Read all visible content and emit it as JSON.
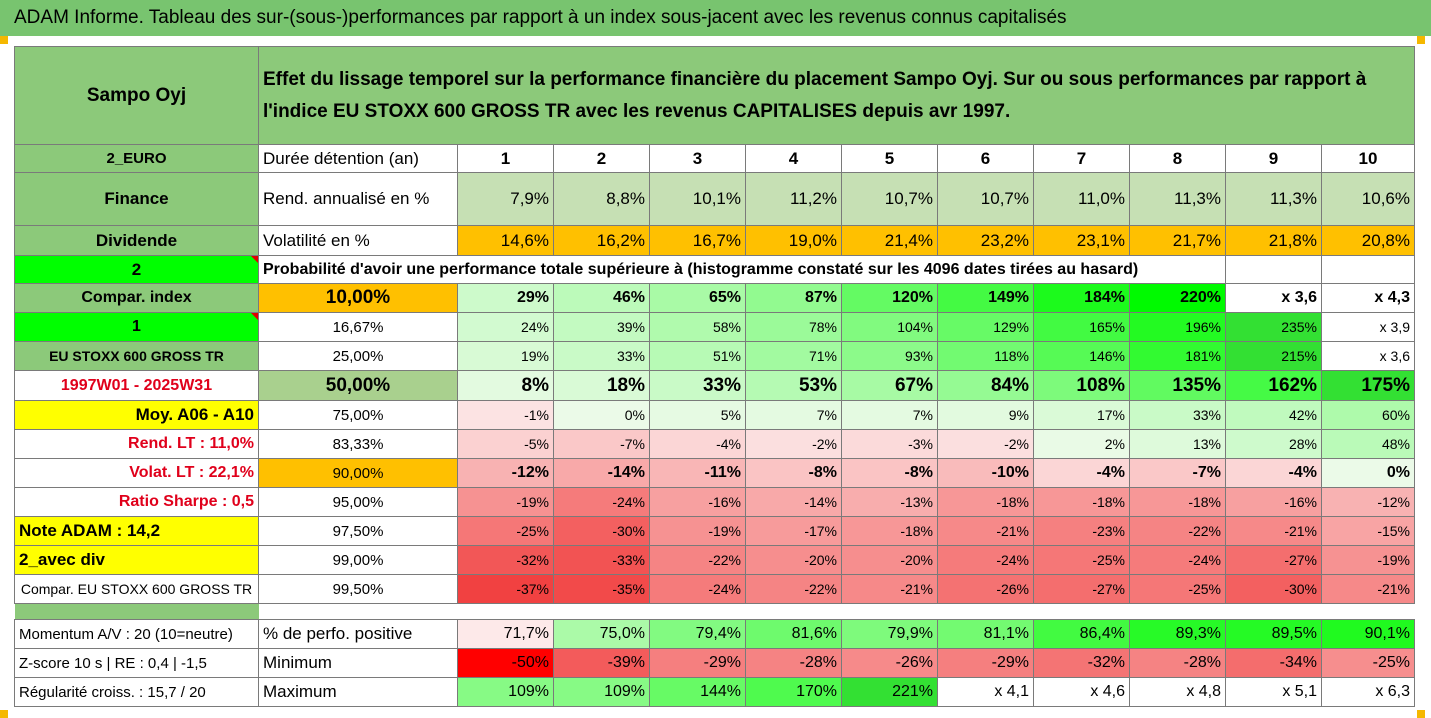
{
  "title": "ADAM Informe. Tableau des sur-(sous-)performances par rapport à un index sous-jacent avec les revenus connus capitalisés",
  "asset_name": "Sampo Oyj",
  "description": "Effet du lissage temporel sur la performance financière du placement Sampo Oyj. Sur ou sous performances par rapport à l'indice EU STOXX 600 GROSS TR avec les revenus CAPITALISES depuis avr 1997.",
  "colors": {
    "header_green": "#78c46f",
    "label_green": "#8cc97a",
    "orange": "#ffc000",
    "yellow": "#ffff00",
    "bright_green": "#00ff00",
    "accent_red": "#e0001b"
  },
  "header_row": {
    "left": "2_EURO",
    "label": "Durée détention (an)",
    "years": [
      "1",
      "2",
      "3",
      "4",
      "5",
      "6",
      "7",
      "8",
      "9",
      "10"
    ]
  },
  "rend_row": {
    "left": "Finance",
    "label": "Rend. annualisé en %",
    "values": [
      "7,9%",
      "8,8%",
      "10,1%",
      "11,2%",
      "10,7%",
      "10,7%",
      "11,0%",
      "11,3%",
      "11,3%",
      "10,6%"
    ]
  },
  "vol_row": {
    "left": "Dividende",
    "label": "Volatilité en %",
    "values": [
      "14,6%",
      "16,2%",
      "16,7%",
      "19,0%",
      "21,4%",
      "23,2%",
      "23,1%",
      "21,7%",
      "21,8%",
      "20,8%"
    ]
  },
  "prob_row": {
    "left": "2",
    "text": "Probabilité d'avoir une performance totale supérieure à (histogramme constaté sur les 4096 dates tirées au hasard)"
  },
  "quantile_rows": [
    {
      "left": "Compar. index",
      "pct": "10,00%",
      "values": [
        "29%",
        "46%",
        "65%",
        "87%",
        "120%",
        "149%",
        "184%",
        "220%",
        "x 3,6",
        "x 4,3"
      ]
    },
    {
      "left": "1",
      "pct": "16,67%",
      "values": [
        "24%",
        "39%",
        "58%",
        "78%",
        "104%",
        "129%",
        "165%",
        "196%",
        "235%",
        "x 3,9"
      ]
    },
    {
      "left": "EU STOXX 600 GROSS TR",
      "pct": "25,00%",
      "values": [
        "19%",
        "33%",
        "51%",
        "71%",
        "93%",
        "118%",
        "146%",
        "181%",
        "215%",
        "x 3,6"
      ]
    },
    {
      "left": "1997W01 - 2025W31",
      "pct": "50,00%",
      "values": [
        "8%",
        "18%",
        "33%",
        "53%",
        "67%",
        "84%",
        "108%",
        "135%",
        "162%",
        "175%"
      ]
    },
    {
      "left": "Moy. A06 - A10",
      "pct": "75,00%",
      "values": [
        "-1%",
        "0%",
        "5%",
        "7%",
        "7%",
        "9%",
        "17%",
        "33%",
        "42%",
        "60%"
      ]
    },
    {
      "left": "Rend. LT :   11,0%",
      "pct": "83,33%",
      "values": [
        "-5%",
        "-7%",
        "-4%",
        "-2%",
        "-3%",
        "-2%",
        "2%",
        "13%",
        "28%",
        "48%"
      ]
    },
    {
      "left": "Volat. LT :   22,1%",
      "pct": "90,00%",
      "values": [
        "-12%",
        "-14%",
        "-11%",
        "-8%",
        "-8%",
        "-10%",
        "-4%",
        "-7%",
        "-4%",
        "0%"
      ]
    },
    {
      "left": "Ratio Sharpe :    0,5",
      "pct": "95,00%",
      "values": [
        "-19%",
        "-24%",
        "-16%",
        "-14%",
        "-13%",
        "-18%",
        "-18%",
        "-18%",
        "-16%",
        "-12%"
      ]
    },
    {
      "left": "Note ADAM : 14,2",
      "pct": "97,50%",
      "values": [
        "-25%",
        "-30%",
        "-19%",
        "-17%",
        "-18%",
        "-21%",
        "-23%",
        "-22%",
        "-21%",
        "-15%"
      ]
    },
    {
      "left": "2_avec div",
      "pct": "99,00%",
      "values": [
        "-32%",
        "-33%",
        "-22%",
        "-20%",
        "-20%",
        "-24%",
        "-25%",
        "-24%",
        "-27%",
        "-19%"
      ]
    },
    {
      "left": "Compar. EU STOXX 600 GROSS TR",
      "pct": "99,50%",
      "values": [
        "-37%",
        "-35%",
        "-24%",
        "-22%",
        "-21%",
        "-26%",
        "-27%",
        "-25%",
        "-30%",
        "-21%"
      ]
    }
  ],
  "bottom_rows": [
    {
      "left": "Momentum A/V : 20 (10=neutre)",
      "label": "% de perfo. positive",
      "values": [
        "71,7%",
        "75,0%",
        "79,4%",
        "81,6%",
        "79,9%",
        "81,1%",
        "86,4%",
        "89,3%",
        "89,5%",
        "90,1%"
      ]
    },
    {
      "left": "Z-score 10 s  |  RE : 0,4  |  -1,5",
      "label": "Minimum",
      "values": [
        "-50%",
        "-39%",
        "-29%",
        "-28%",
        "-26%",
        "-29%",
        "-32%",
        "-28%",
        "-34%",
        "-25%"
      ]
    },
    {
      "left": "Régularité croiss. : 15,7 / 20",
      "label": "Maximum",
      "values": [
        "109%",
        "109%",
        "144%",
        "170%",
        "221%",
        "x 4,1",
        "x 4,6",
        "x 4,8",
        "x 5,1",
        "x 6,3"
      ]
    }
  ]
}
